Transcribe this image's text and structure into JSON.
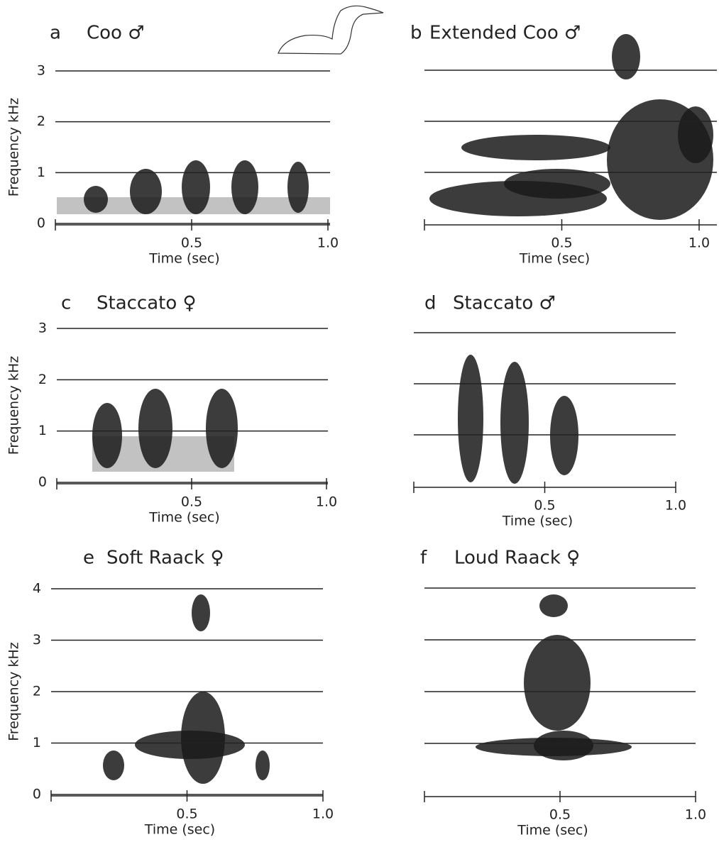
{
  "chart_data": [
    {
      "type": "spectrogram",
      "label": "a",
      "title": "Coo ♂",
      "xlabel": "Time (sec)",
      "ylabel": "Frequency kHz",
      "xlim": [
        0,
        1.0
      ],
      "ylim": [
        0,
        3
      ],
      "xticks": [
        0.5,
        {
          "value": 1.0,
          "label": "1.0"
        }
      ],
      "yticks": [
        0,
        1,
        2,
        3
      ]
    },
    {
      "type": "spectrogram",
      "label": "b",
      "title": "Extended Coo ♂",
      "xlabel": "Time (sec)",
      "xlim": [
        0,
        1.0
      ],
      "ylim": [
        0,
        3
      ],
      "xticks": [
        0.5,
        {
          "value": 1.0,
          "label": "1.0"
        }
      ],
      "hlines": [
        1,
        2,
        3
      ]
    },
    {
      "type": "spectrogram",
      "label": "c",
      "title": "Staccato ♀",
      "xlabel": "Time (sec)",
      "ylabel": "Frequency kHz",
      "xlim": [
        0,
        1.0
      ],
      "ylim": [
        0,
        3
      ],
      "xticks": [
        0.5,
        {
          "value": 1.0,
          "label": "1.0"
        }
      ],
      "yticks": [
        0,
        1,
        2,
        3
      ]
    },
    {
      "type": "spectrogram",
      "label": "d",
      "title": "Staccato ♂",
      "xlabel": "Time (sec)",
      "xlim": [
        0,
        1.0
      ],
      "ylim": [
        0,
        3
      ],
      "xticks": [
        0.5,
        {
          "value": 1.0,
          "label": "1.0"
        }
      ],
      "hlines": [
        1,
        2,
        3
      ]
    },
    {
      "type": "spectrogram",
      "label": "e",
      "title": "Soft Raack ♀",
      "xlabel": "Time (sec)",
      "ylabel": "Frequency kHz",
      "xlim": [
        0,
        1.0
      ],
      "ylim": [
        0,
        4
      ],
      "xticks": [
        0.5,
        {
          "value": 1.0,
          "label": "1.0"
        }
      ],
      "yticks": [
        0,
        1,
        2,
        3,
        4
      ]
    },
    {
      "type": "spectrogram",
      "label": "f",
      "title": "Loud Raack ♀",
      "xlabel": "Time (sec)",
      "xlim": [
        0,
        1.0
      ],
      "ylim": [
        0,
        4
      ],
      "xticks": [
        0.5,
        {
          "value": 1.0,
          "label": "1.0"
        }
      ],
      "hlines": [
        1,
        2,
        3,
        4
      ]
    }
  ]
}
